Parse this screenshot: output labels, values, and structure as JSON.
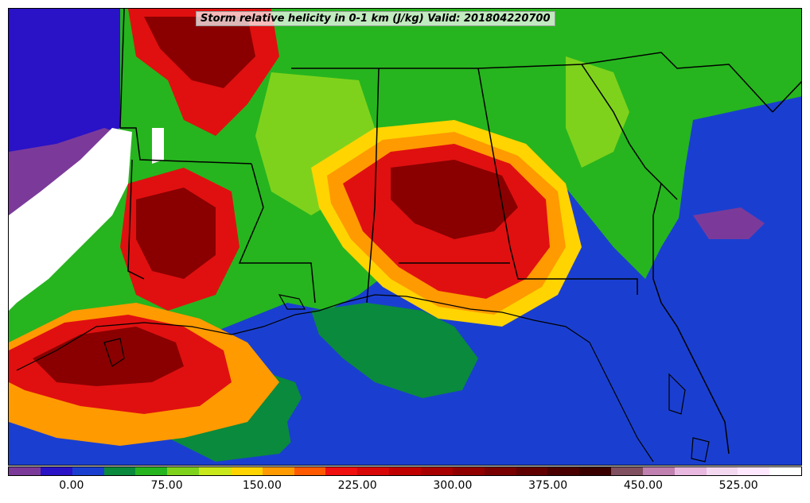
{
  "title": "Storm relative helicity in 0-1 km (J/kg) Valid: 201804220700",
  "colorbar": {
    "colors": [
      "#7b3a9a",
      "#2a12c6",
      "#1a3fd0",
      "#0a8a3c",
      "#26b51e",
      "#7fd21c",
      "#c8e81a",
      "#ffd400",
      "#ff9a00",
      "#ff5a00",
      "#f01010",
      "#d80808",
      "#c00000",
      "#a80000",
      "#900000",
      "#780000",
      "#600000",
      "#4a0000",
      "#3a0000",
      "#805060",
      "#c080b0",
      "#e8b8e0",
      "#f4d8f0",
      "#ffe8ff",
      "#ffffff"
    ],
    "tick_labels": [
      "0.00",
      "75.00",
      "150.00",
      "225.00",
      "300.00",
      "375.00",
      "450.00",
      "525.00"
    ],
    "tick_positions": [
      0.08,
      0.2,
      0.32,
      0.44,
      0.56,
      0.68,
      0.8,
      0.92
    ]
  },
  "map": {
    "ocean_color": "#1a3fd0",
    "land_colors": {
      "green": "#26b51e",
      "dark_green": "#0a8a3c",
      "lime": "#7fd21c",
      "yellow": "#ffd400",
      "orange": "#ff9a00",
      "red": "#e01010",
      "dark_red": "#8a0000",
      "purple": "#7b3a9a",
      "white": "#ffffff"
    }
  }
}
